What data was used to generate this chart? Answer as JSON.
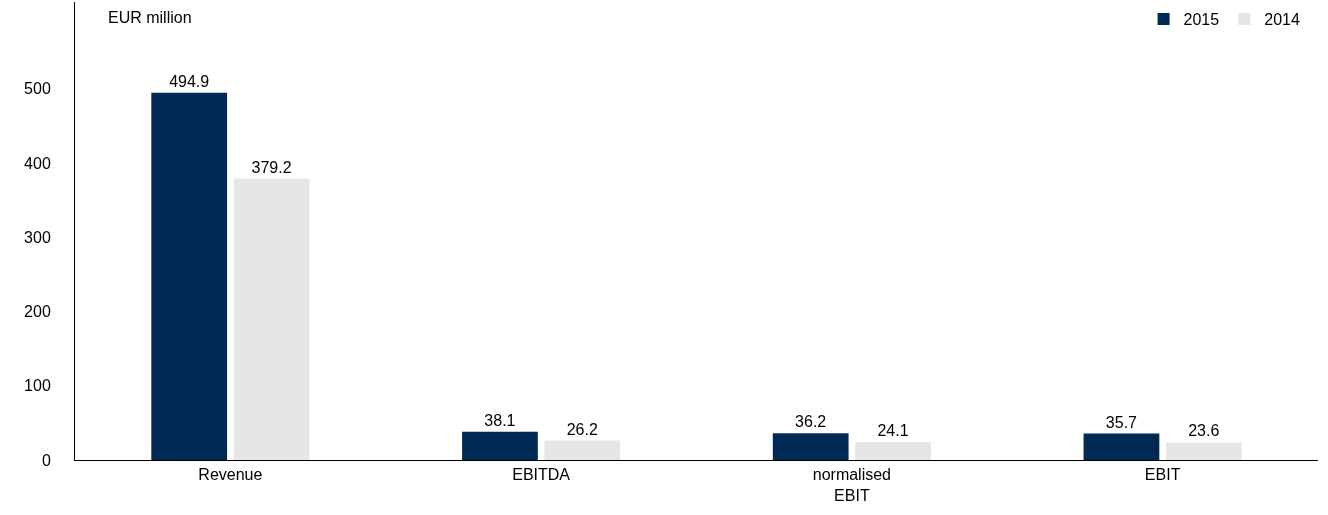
{
  "chart_data": {
    "type": "bar",
    "ylabel": "EUR million",
    "categories": [
      "Revenue",
      "EBITDA",
      "normalised\nEBIT",
      "EBIT"
    ],
    "series": [
      {
        "name": "2015",
        "color": "#002a54",
        "values": [
          494.9,
          38.1,
          36.2,
          35.7
        ]
      },
      {
        "name": "2014",
        "color": "#e6e6e6",
        "values": [
          379.2,
          26.2,
          24.1,
          23.6
        ]
      }
    ],
    "ylim": [
      0,
      617
    ],
    "yticks": [
      0,
      100,
      200,
      300,
      400,
      500
    ],
    "data_labels": true,
    "grid": false,
    "legend": "top right"
  }
}
